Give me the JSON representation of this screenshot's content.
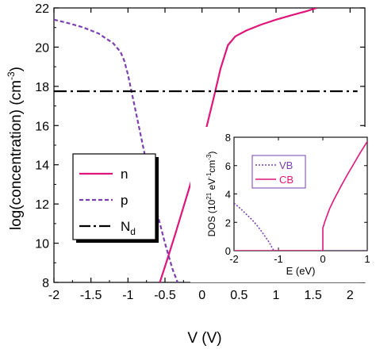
{
  "chart_data": [
    {
      "type": "line",
      "title": "",
      "xlabel": "V (V)",
      "ylabel": "log(concentration) (cm",
      "ylabel_sup": "-3",
      "ylabel_tail": ")",
      "xlim": [
        -2,
        2.2
      ],
      "ylim": [
        8,
        22
      ],
      "xticks": [
        -2,
        -1.5,
        -1,
        -0.5,
        0,
        0.5,
        1,
        1.5,
        2
      ],
      "xtick_labels": [
        "-2",
        "-1.5",
        "-1",
        "-0.5",
        "0",
        "0.5",
        "1",
        "1.5",
        "2"
      ],
      "yticks": [
        8,
        10,
        12,
        14,
        16,
        18,
        20,
        22
      ],
      "ytick_labels": [
        "8",
        "10",
        "12",
        "14",
        "16",
        "18",
        "20",
        "22"
      ],
      "grid": false,
      "legend_position": "left",
      "series": [
        {
          "name": "n",
          "color": "#e0157a",
          "style": "solid",
          "x": [
            -0.57,
            -0.45,
            -0.35,
            -0.25,
            -0.15,
            -0.05,
            0.05,
            0.15,
            0.25,
            0.35,
            0.45,
            0.6,
            0.8,
            1.0,
            1.2,
            1.4,
            1.55
          ],
          "y": [
            8.0,
            9.4,
            10.6,
            11.85,
            13.1,
            14.4,
            15.75,
            17.3,
            18.9,
            20.1,
            20.55,
            20.85,
            21.15,
            21.4,
            21.62,
            21.82,
            22.0
          ]
        },
        {
          "name": "p",
          "color": "#7b3fb0",
          "style": "dashed",
          "x": [
            -2.0,
            -1.8,
            -1.6,
            -1.4,
            -1.2,
            -1.1,
            -1.05,
            -1.0,
            -0.95,
            -0.9,
            -0.8,
            -0.7,
            -0.6,
            -0.5,
            -0.4,
            -0.33
          ],
          "y": [
            21.4,
            21.22,
            21.0,
            20.7,
            20.2,
            19.75,
            19.3,
            18.6,
            17.7,
            16.8,
            15.0,
            13.2,
            11.45,
            10.0,
            8.7,
            8.0
          ]
        },
        {
          "name": "N_d",
          "color": "#000000",
          "style": "dashdot",
          "x": [
            -2.0,
            2.1
          ],
          "y": [
            17.75,
            17.75
          ]
        }
      ],
      "legend": [
        {
          "label": "n",
          "sub": ""
        },
        {
          "label": "p",
          "sub": ""
        },
        {
          "label": "N",
          "sub": "d"
        }
      ]
    },
    {
      "type": "line",
      "title": "",
      "xlabel": "E (eV)",
      "ylabel": "DOS (10",
      "ylabel_sup1": "21",
      "ylabel_mid": " eV",
      "ylabel_sup2": "-1",
      "ylabel_mid2": "cm",
      "ylabel_sup3": "-3",
      "ylabel_tail": ")",
      "xlim": [
        -2,
        1
      ],
      "ylim": [
        0,
        8
      ],
      "xticks": [
        -2,
        -1,
        0,
        1
      ],
      "xtick_labels": [
        "-2",
        "-1",
        "0",
        "1"
      ],
      "yticks": [
        0,
        2,
        4,
        6,
        8
      ],
      "ytick_labels": [
        "0",
        "2",
        "4",
        "6",
        "8"
      ],
      "grid": false,
      "legend_position": "top-left",
      "series": [
        {
          "name": "VB",
          "color": "#7b3fb0",
          "style": "dotted",
          "x": [
            -2.0,
            -1.9,
            -1.8,
            -1.7,
            -1.6,
            -1.5,
            -1.4,
            -1.3,
            -1.2,
            -1.15,
            -1.12,
            -1.1,
            1.0
          ],
          "y": [
            3.35,
            3.1,
            2.8,
            2.5,
            2.2,
            1.85,
            1.45,
            1.0,
            0.55,
            0.25,
            0.08,
            0.0,
            0.0
          ]
        },
        {
          "name": "CB",
          "color": "#e0157a",
          "style": "solid",
          "x": [
            -2.0,
            0.0,
            0.0,
            0.05,
            0.15,
            0.25,
            0.4,
            0.55,
            0.7,
            0.85,
            1.0
          ],
          "y": [
            0.0,
            0.0,
            1.6,
            2.1,
            2.95,
            3.6,
            4.5,
            5.35,
            6.15,
            6.95,
            7.7
          ]
        }
      ],
      "legend": [
        {
          "label": "VB"
        },
        {
          "label": "CB"
        }
      ]
    }
  ]
}
